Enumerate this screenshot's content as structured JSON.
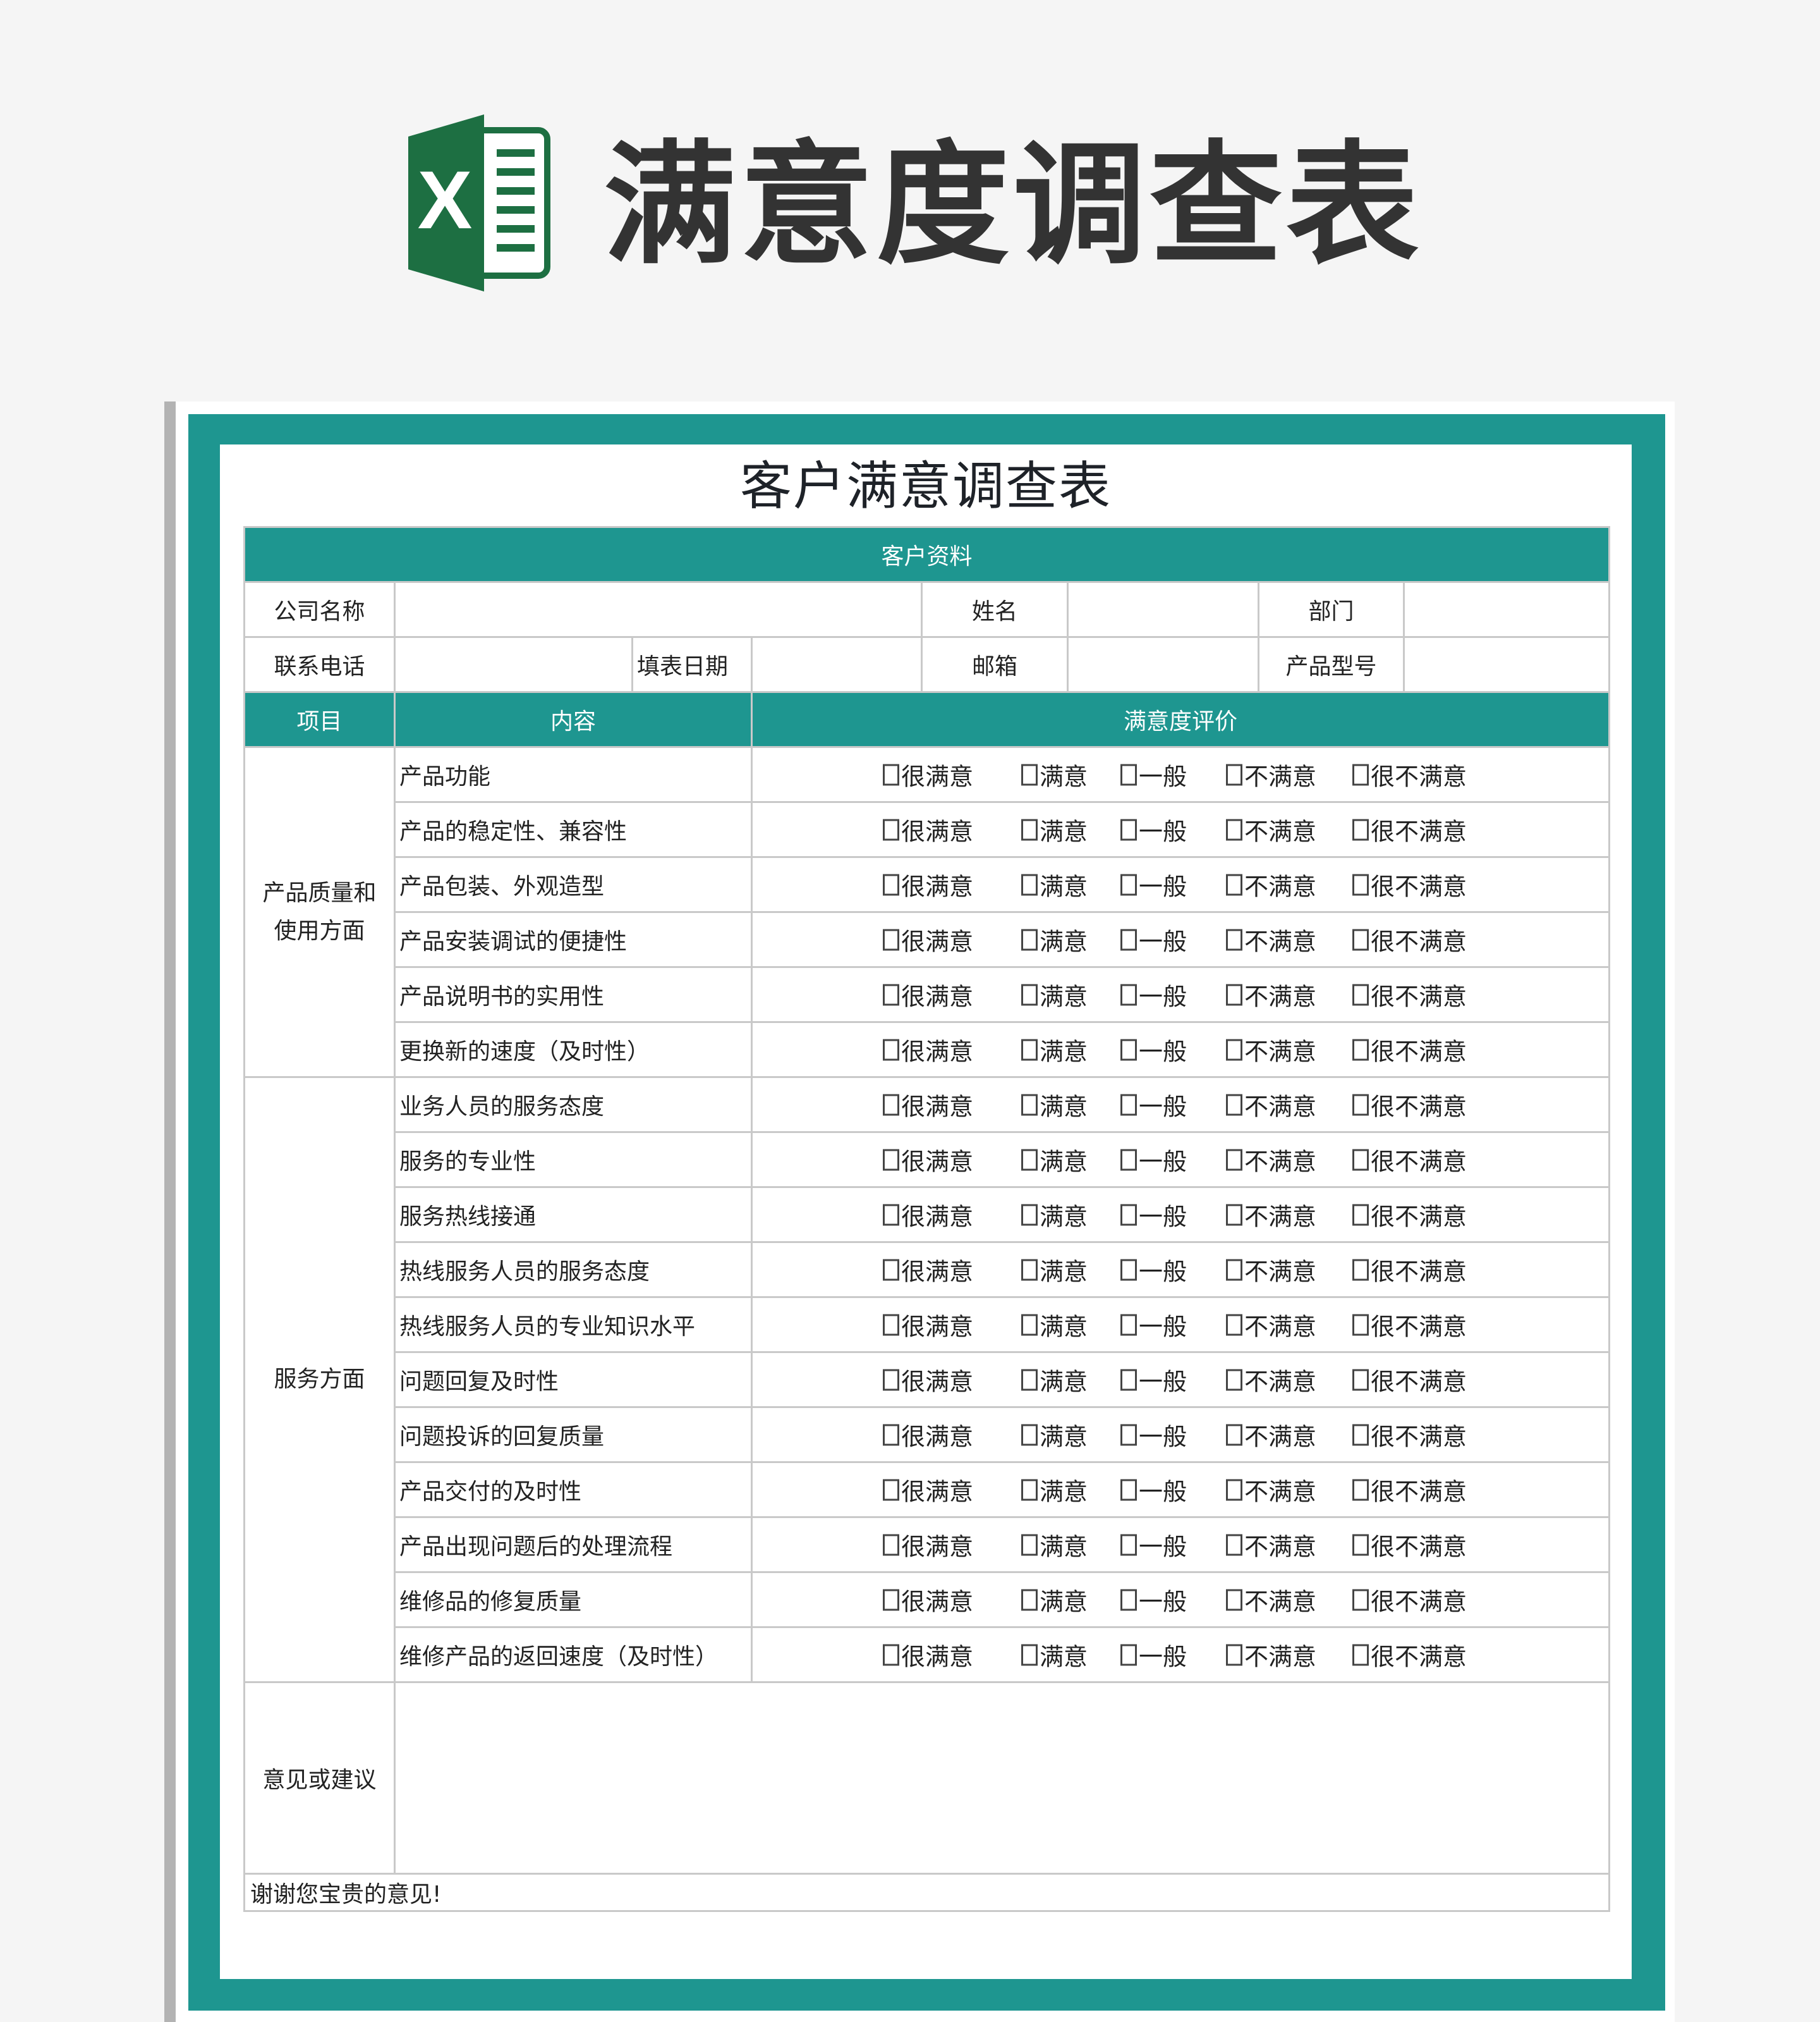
{
  "header": {
    "title": "满意度调查表",
    "logo_letter": "X",
    "logo_icon": "excel-icon"
  },
  "sheet": {
    "title": "客户满意调查表",
    "section_customer": "客户资料",
    "fields": {
      "company": "公司名称",
      "name": "姓名",
      "department": "部门",
      "phone": "联系电话",
      "date": "填表日期",
      "email": "邮箱",
      "model": "产品型号"
    },
    "columns": {
      "item": "项目",
      "content": "内容",
      "rating": "满意度评价"
    },
    "options": [
      "很满意",
      "满意",
      "一般",
      "不满意",
      "很不满意"
    ],
    "groups": [
      {
        "label": "产品质量和使用方面",
        "items": [
          "产品功能",
          "产品的稳定性、兼容性",
          "产品包装、外观造型",
          "产品安装调试的便捷性",
          "产品说明书的实用性",
          "更换新的速度（及时性）"
        ]
      },
      {
        "label": "服务方面",
        "items": [
          "业务人员的服务态度",
          "服务的专业性",
          "服务热线接通",
          "热线服务人员的服务态度",
          "热线服务人员的专业知识水平",
          "问题回复及时性",
          "问题投诉的回复质量",
          "产品交付的及时性",
          "产品出现问题后的处理流程",
          "维修品的修复质量",
          "维修产品的返回速度（及时性）"
        ]
      }
    ],
    "suggestion_label": "意见或建议",
    "footer": "谢谢您宝贵的意见!"
  },
  "colors": {
    "teal": "#1e9690",
    "excel_green": "#1d6f42"
  }
}
